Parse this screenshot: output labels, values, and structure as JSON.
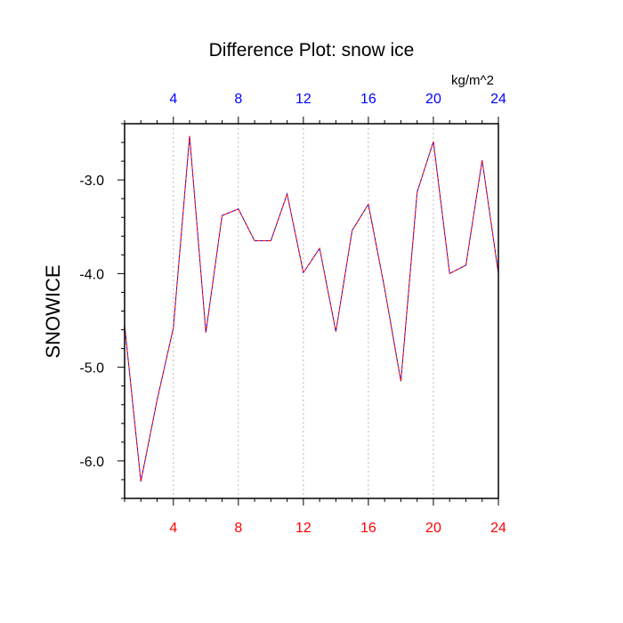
{
  "chart_data": {
    "type": "line",
    "title": "Difference Plot: snow ice",
    "ylabel": "SNOWICE",
    "units": "kg/m^2",
    "xlim": [
      1,
      24
    ],
    "ylim": [
      -6.4,
      -2.4
    ],
    "x_ticks": [
      4,
      8,
      12,
      16,
      20,
      24
    ],
    "y_ticks": [
      -3.0,
      -4.0,
      -5.0,
      -6.0
    ],
    "y_tick_labels": [
      "-3.0",
      "-4.0",
      "-5.0",
      "-6.0"
    ],
    "grid": "vertical-dashed",
    "colors": {
      "bottom_tick_labels": "#ff0000",
      "top_tick_labels": "#0000ff",
      "line_primary": "#0000ff",
      "line_secondary": "#ff0000",
      "grid": "#aaaaaa"
    },
    "series": [
      {
        "x": [
          1,
          2,
          3,
          4,
          5,
          6,
          7,
          8,
          9,
          10,
          11,
          12,
          13,
          14,
          15,
          16,
          17,
          18,
          19,
          20,
          21,
          22,
          23,
          24
        ],
        "values": [
          -4.55,
          -6.22,
          -5.35,
          -4.58,
          -2.53,
          -4.63,
          -3.38,
          -3.31,
          -3.65,
          -3.65,
          -3.15,
          -3.99,
          -3.73,
          -4.62,
          -3.54,
          -3.26,
          -4.16,
          -5.15,
          -3.13,
          -2.59,
          -4.0,
          -3.91,
          -2.79,
          -4.0
        ]
      }
    ]
  }
}
